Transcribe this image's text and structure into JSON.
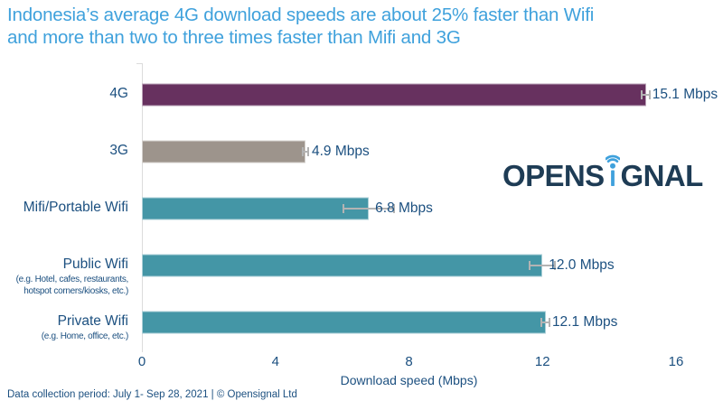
{
  "title": {
    "line1": "Indonesia’s average 4G download speeds are about 25% faster than Wifi",
    "line2": "and more than two to three times faster than Mifi and 3G"
  },
  "chart_data": {
    "type": "bar",
    "orientation": "horizontal",
    "categories": [
      "4G",
      "3G",
      "Mifi/Portable Wifi",
      "Public Wifi",
      "Private Wifi"
    ],
    "category_sublabels": [
      [],
      [],
      [],
      [
        "(e.g. Hotel, cafes, restaurants,",
        "hotspot corners/kiosks, etc.)"
      ],
      [
        "(e.g. Home, office, etc.)"
      ]
    ],
    "values": [
      15.1,
      4.9,
      6.8,
      12.0,
      12.1
    ],
    "value_labels": [
      "15.1 Mbps",
      "4.9 Mbps",
      "6.8 Mbps",
      "12.0 Mbps",
      "12.1 Mbps"
    ],
    "error_mbps": [
      0.15,
      0.1,
      0.78,
      0.4,
      0.15
    ],
    "bar_colors": [
      "#67315F",
      "#9D948C",
      "#4496A6",
      "#4496A6",
      "#4496A6"
    ],
    "xlabel": "Download speed (Mbps)",
    "xticks": [
      0,
      4,
      8,
      12,
      16
    ],
    "xlim": [
      0,
      16
    ],
    "grid": false,
    "legend": null
  },
  "logo": {
    "name": "Opensignal",
    "prefix": "OPENS",
    "suffix": "GNAL",
    "icon": "wifi-i-icon"
  },
  "footer": {
    "text": "Data collection period: July 1- Sep 28, 2021 | © Opensignal Ltd"
  },
  "colors": {
    "title_blue": "#3FA1DC",
    "text_navy": "#1C5080",
    "bar_4g": "#67315F",
    "bar_3g": "#9D948C",
    "bar_wifi_teal": "#4496A6",
    "logo_navy": "#1E3C55",
    "logo_blue": "#3FA1DC",
    "axis_gray": "#DCDCDC",
    "whisker_gray": "#B3B3B3",
    "background": "#FFFFFF"
  }
}
